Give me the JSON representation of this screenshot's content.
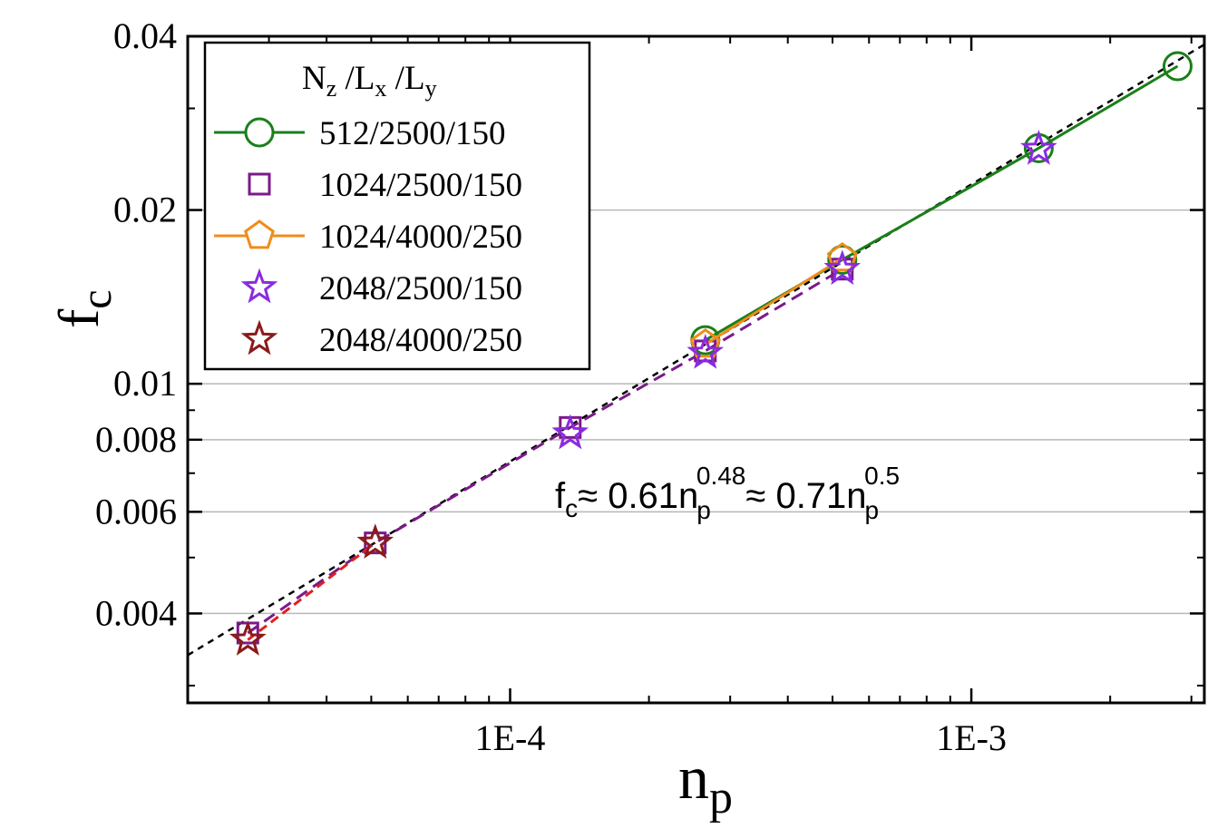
{
  "chart_data": {
    "type": "scatter",
    "xscale": "log",
    "yscale": "log",
    "xlim": [
      2e-05,
      0.0032
    ],
    "ylim": [
      0.0028,
      0.04
    ],
    "grid": "horizontal",
    "xlabel": {
      "base": "n",
      "sub": "p"
    },
    "ylabel": {
      "base": "f",
      "sub": "c"
    },
    "xticks": [
      {
        "value": 0.0001,
        "label": "1E-4"
      },
      {
        "value": 0.001,
        "label": "1E-3"
      }
    ],
    "xminor": [
      3e-05,
      4e-05,
      5e-05,
      6e-05,
      7e-05,
      8e-05,
      9e-05,
      0.0002,
      0.0003,
      0.0004,
      0.0005,
      0.0006,
      0.0007,
      0.0008,
      0.0009,
      0.002,
      0.003
    ],
    "yticks": [
      {
        "value": 0.004,
        "label": "0.004"
      },
      {
        "value": 0.006,
        "label": "0.006"
      },
      {
        "value": 0.008,
        "label": "0.008"
      },
      {
        "value": 0.01,
        "label": "0.01"
      },
      {
        "value": 0.02,
        "label": "0.02"
      },
      {
        "value": 0.04,
        "label": "0.04"
      }
    ],
    "yminor": [
      0.003,
      0.005,
      0.007,
      0.009,
      0.03
    ],
    "legend_title": {
      "N": "N",
      "Nsub": "z",
      "sep1": " /L",
      "Lxsub": "x",
      "sep2": " /L",
      "Lysub": "y"
    },
    "legend_position": "top-left",
    "series": [
      {
        "name": "512/2500/150",
        "color": "#1a7f1a",
        "marker": "circle",
        "line": "solid",
        "x": [
          0.000265,
          0.000525,
          0.0014,
          0.0028
        ],
        "y": [
          0.0119,
          0.0164,
          0.0256,
          0.0355
        ]
      },
      {
        "name": "1024/2500/150",
        "color": "#7b1a8a",
        "marker": "square",
        "line": "dashed",
        "x": [
          2.7e-05,
          5.1e-05,
          0.000135,
          0.000265,
          0.000525
        ],
        "y": [
          0.0037,
          0.0053,
          0.0084,
          0.0114,
          0.0158
        ]
      },
      {
        "name": "1024/4000/250",
        "color": "#f08c1a",
        "marker": "pentagon",
        "line": "solid",
        "x": [
          0.000265,
          0.000525
        ],
        "y": [
          0.0117,
          0.0165
        ]
      },
      {
        "name": "2048/2500/150",
        "color": "#8a2be2",
        "marker": "star",
        "line": "none",
        "x": [
          0.000135,
          0.000265,
          0.000525,
          0.0014
        ],
        "y": [
          0.0082,
          0.0113,
          0.0158,
          0.0255
        ]
      },
      {
        "name": "2048/4000/250",
        "color": "#8b1a1a",
        "marker": "star",
        "line": "dashed-red",
        "x": [
          2.7e-05,
          5.1e-05
        ],
        "y": [
          0.0036,
          0.0053
        ]
      }
    ],
    "fit_line": {
      "prefactor": 0.61,
      "exponent": 0.48,
      "style": "dotted",
      "color": "#000000"
    },
    "annotation": {
      "f": "f",
      "fsub": "c",
      "approx1": "≈ 0.61n",
      "sub1": "p",
      "sup1": "0.48",
      "approx2": "≈ 0.71n",
      "sub2": "p",
      "sup2": "0.5"
    }
  }
}
